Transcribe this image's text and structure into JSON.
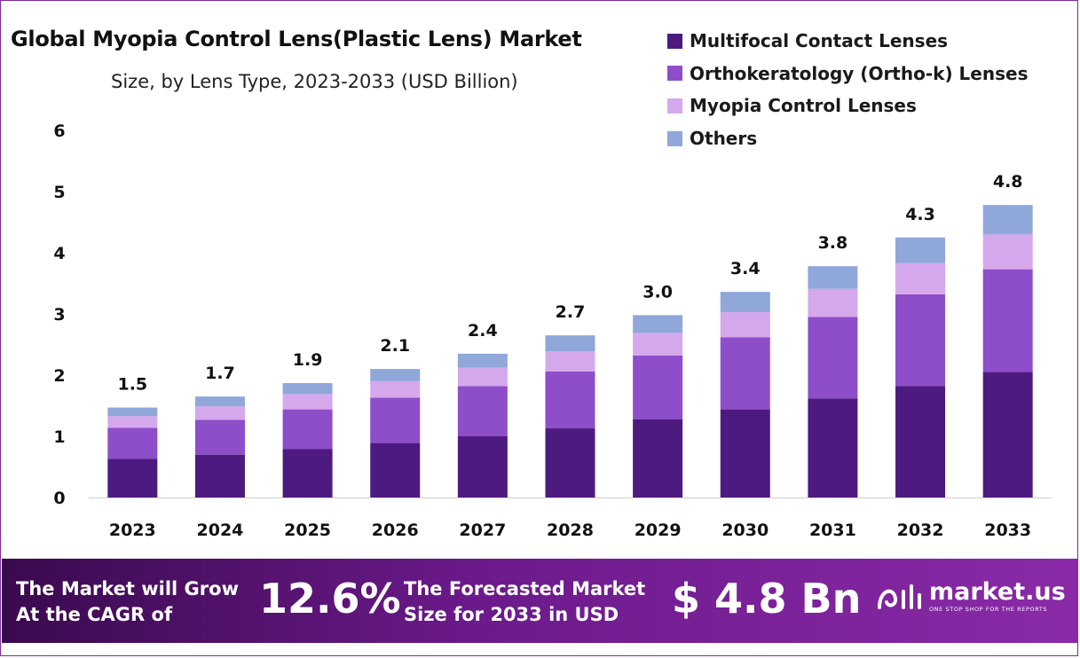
{
  "colors": {
    "multifocal": "#4d1a7f",
    "orthok": "#8e4dc9",
    "myopia": "#d5a8ec",
    "others": "#8fa7d9",
    "footer_start": "#3a0a4e",
    "footer_end": "#8a2aa8",
    "frame": "#7b2a9a"
  },
  "chart_data": {
    "type": "bar",
    "stacked": true,
    "title": "Global Myopia Control Lens(Plastic Lens) Market",
    "subtitle": "Size, by Lens Type, 2023-2033 (USD Billion)",
    "categories": [
      "2023",
      "2024",
      "2025",
      "2026",
      "2027",
      "2028",
      "2029",
      "2030",
      "2031",
      "2032",
      "2033"
    ],
    "series": [
      {
        "name": "Multifocal Contact Lenses",
        "color_key": "multifocal",
        "values": [
          0.63,
          0.7,
          0.79,
          0.89,
          1.0,
          1.13,
          1.28,
          1.44,
          1.62,
          1.82,
          2.05
        ]
      },
      {
        "name": "Orthokeratology (Ortho-k) Lenses",
        "color_key": "orthok",
        "values": [
          0.51,
          0.57,
          0.65,
          0.74,
          0.82,
          0.93,
          1.04,
          1.18,
          1.33,
          1.5,
          1.68
        ]
      },
      {
        "name": "Myopia Control Lenses",
        "color_key": "myopia",
        "values": [
          0.19,
          0.22,
          0.25,
          0.27,
          0.3,
          0.33,
          0.37,
          0.41,
          0.46,
          0.51,
          0.57
        ]
      },
      {
        "name": "Others",
        "color_key": "others",
        "values": [
          0.14,
          0.16,
          0.18,
          0.2,
          0.23,
          0.26,
          0.29,
          0.33,
          0.37,
          0.42,
          0.48
        ]
      }
    ],
    "totals": [
      "1.5",
      "1.7",
      "1.9",
      "2.1",
      "2.4",
      "2.7",
      "3.0",
      "3.4",
      "3.8",
      "4.3",
      "4.8"
    ],
    "yticks": [
      "0",
      "1",
      "2",
      "3",
      "4",
      "5",
      "6"
    ],
    "ylim": [
      0,
      6
    ],
    "legend_position": "top-right",
    "grid": false
  },
  "footer": {
    "grow_line1": "The Market will Grow",
    "grow_line2": "At the CAGR of",
    "cagr": "12.6%",
    "forecast_line1": "The Forecasted Market",
    "forecast_line2": "Size for 2033 in USD",
    "size": "$ 4.8 Bn",
    "logo_text": "market.us",
    "logo_tagline": "ONE STOP SHOP FOR THE REPORTS",
    "logo_icon": "market-us-logo-icon"
  }
}
